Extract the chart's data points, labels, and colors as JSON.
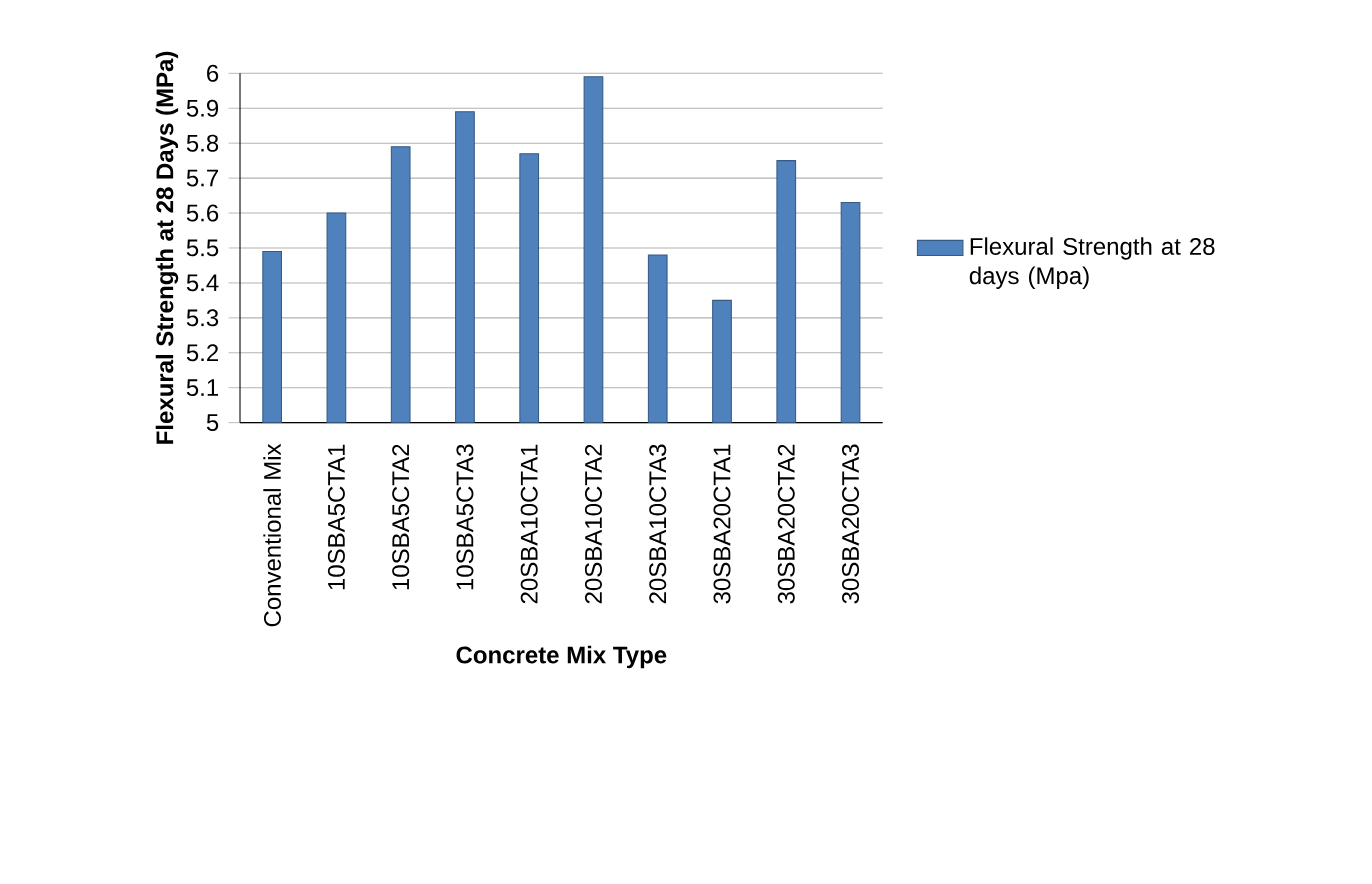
{
  "chart_data": {
    "type": "bar",
    "xlabel": "Concrete Mix Type",
    "ylabel": "Flexural Strength at 28 Days (MPa)",
    "categories": [
      "Conventional Mix",
      "10SBA5CTA1",
      "10SBA5CTA2",
      "10SBA5CTA3",
      "20SBA10CTA1",
      "20SBA10CTA2",
      "20SBA10CTA3",
      "30SBA20CTA1",
      "30SBA20CTA2",
      "30SBA20CTA3"
    ],
    "series": [
      {
        "name": "Flexural Strength at 28 days (Mpa)",
        "color": "#4f81bd",
        "values": [
          5.49,
          5.6,
          5.79,
          5.89,
          5.77,
          5.99,
          5.48,
          5.35,
          5.75,
          5.63
        ]
      }
    ],
    "ylim": [
      5,
      6
    ],
    "yticks": [
      5,
      5.1,
      5.2,
      5.3,
      5.4,
      5.5,
      5.6,
      5.7,
      5.8,
      5.9,
      6
    ],
    "grid": "y",
    "legend": "right"
  }
}
